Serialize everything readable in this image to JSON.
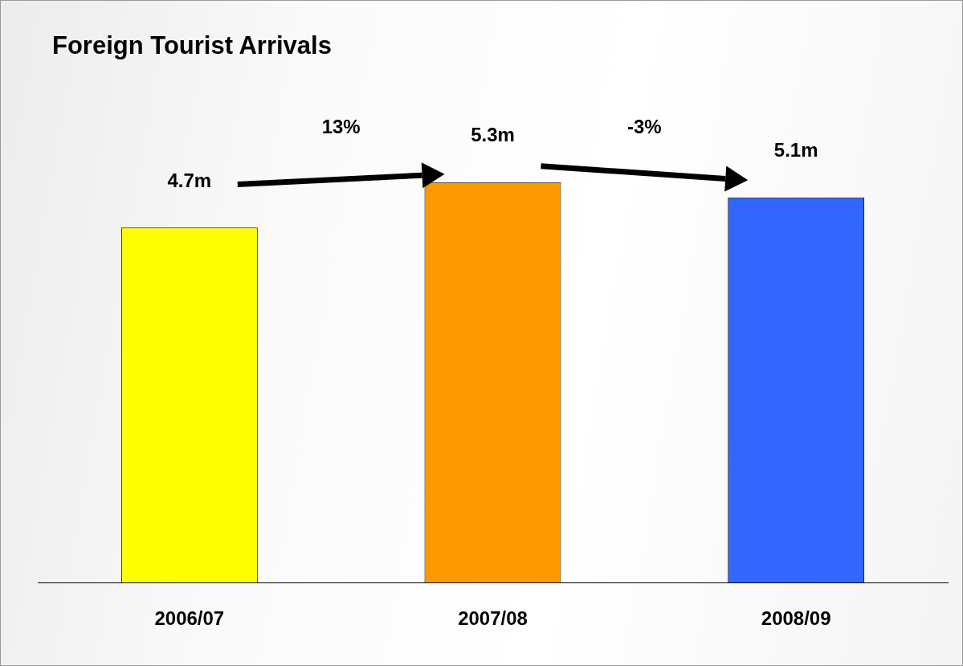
{
  "chart_data": {
    "type": "bar",
    "title": "Foreign Tourist Arrivals",
    "categories": [
      "2006/07",
      "2007/08",
      "2008/09"
    ],
    "values": [
      4.7,
      5.3,
      5.1
    ],
    "colors": [
      "#ffff00",
      "#ff9900",
      "#3366ff"
    ],
    "value_labels": [
      "4.7m",
      "5.3m",
      "5.1m"
    ],
    "annotations": [
      "13%",
      "-3%"
    ],
    "grid": false,
    "legend": false
  }
}
